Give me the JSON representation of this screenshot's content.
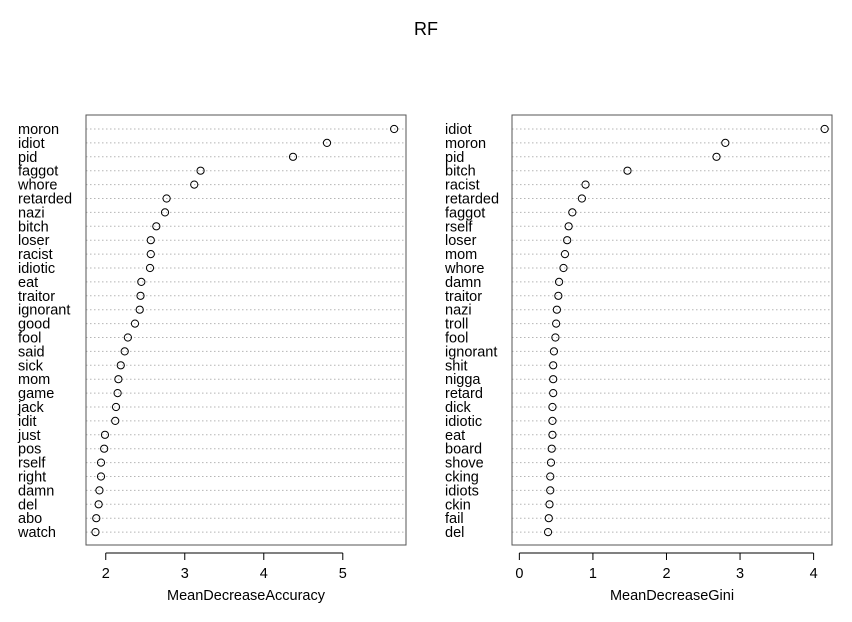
{
  "title": "RF",
  "chart_data": [
    {
      "type": "scatter",
      "xlabel": "MeanDecreaseAccuracy",
      "xlim": [
        1.75,
        5.8
      ],
      "xticks": [
        2,
        3,
        4,
        5
      ],
      "grid": "dotted-horizontal",
      "categories": [
        "moron",
        "idiot",
        "pid",
        "faggot",
        "whore",
        "retarded",
        "nazi",
        "bitch",
        "loser",
        "racist",
        "idiotic",
        "eat",
        "traitor",
        "ignorant",
        "good",
        "fool",
        "said",
        "sick",
        "mom",
        "game",
        "jack",
        "idit",
        "just",
        "pos",
        "rself",
        "right",
        "damn",
        "del",
        "abo",
        "watch"
      ],
      "values": [
        5.65,
        4.8,
        4.37,
        3.2,
        3.12,
        2.77,
        2.75,
        2.64,
        2.57,
        2.57,
        2.56,
        2.45,
        2.44,
        2.43,
        2.37,
        2.28,
        2.24,
        2.19,
        2.16,
        2.15,
        2.13,
        2.12,
        1.99,
        1.98,
        1.94,
        1.94,
        1.92,
        1.91,
        1.88,
        1.87
      ]
    },
    {
      "type": "scatter",
      "xlabel": "MeanDecreaseGini",
      "xlim": [
        -0.1,
        4.25
      ],
      "xticks": [
        0,
        1,
        2,
        3,
        4
      ],
      "grid": "dotted-horizontal",
      "categories": [
        "idiot",
        "moron",
        "pid",
        "bitch",
        "racist",
        "retarded",
        "faggot",
        "rself",
        "loser",
        "mom",
        "whore",
        "damn",
        "traitor",
        "nazi",
        "troll",
        "fool",
        "ignorant",
        "shit",
        "nigga",
        "retard",
        "dick",
        "idiotic",
        "eat",
        "board",
        "shove",
        "cking",
        "idiots",
        "ckin",
        "fail",
        "del"
      ],
      "values": [
        4.15,
        2.8,
        2.68,
        1.47,
        0.9,
        0.85,
        0.72,
        0.67,
        0.65,
        0.62,
        0.6,
        0.54,
        0.53,
        0.51,
        0.5,
        0.49,
        0.47,
        0.46,
        0.46,
        0.46,
        0.45,
        0.45,
        0.45,
        0.44,
        0.43,
        0.42,
        0.42,
        0.41,
        0.4,
        0.39
      ]
    }
  ]
}
